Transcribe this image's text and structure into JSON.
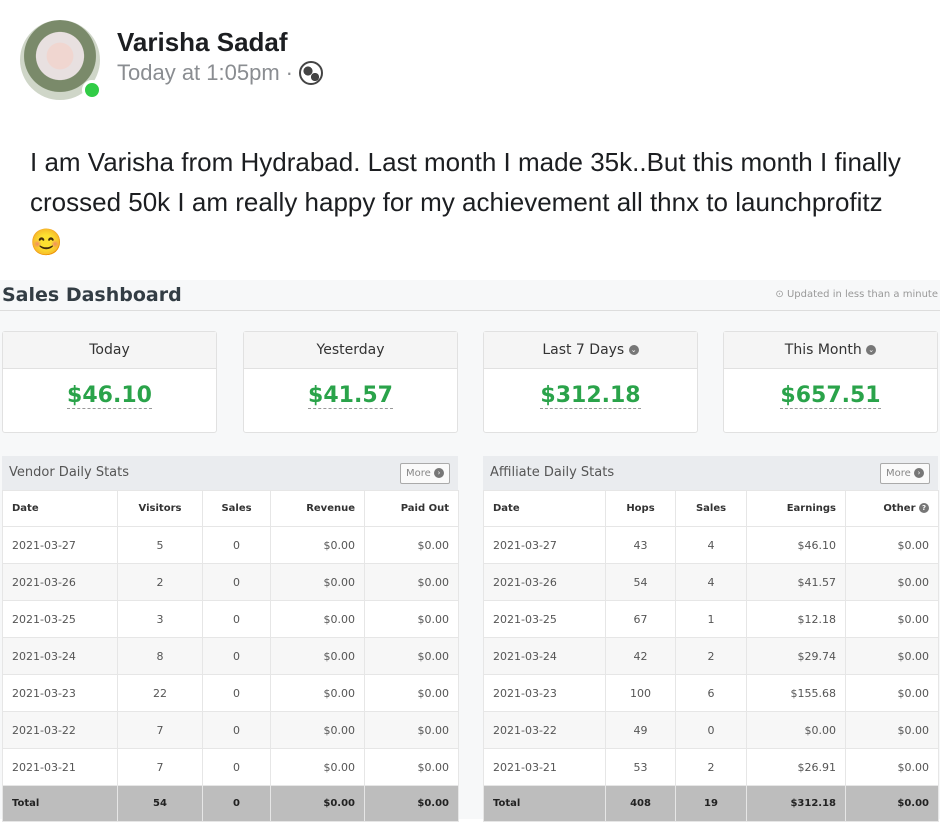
{
  "post": {
    "author": "Varisha Sadaf",
    "time": "Today at 1:05pm",
    "separator": "·",
    "privacy_icon": "globe-icon",
    "text": "I am Varisha from Hydrabad. Last month I made 35k..But this month I finally crossed 50k I am really happy for my achievement all thnx to launchprofitz 😊"
  },
  "dashboard": {
    "title": "Sales Dashboard",
    "updated": "⊙ Updated in less than a minute",
    "cards": [
      {
        "label": "Today",
        "value": "$46.10"
      },
      {
        "label": "Yesterday",
        "value": "$41.57"
      },
      {
        "label": "Last 7 Days",
        "value": "$312.18"
      },
      {
        "label": "This Month",
        "value": "$657.51"
      }
    ],
    "vendor": {
      "title": "Vendor Daily Stats",
      "more": "More",
      "columns": [
        "Date",
        "Visitors",
        "Sales",
        "Revenue",
        "Paid Out"
      ],
      "rows": [
        [
          "2021-03-27",
          "5",
          "0",
          "$0.00",
          "$0.00"
        ],
        [
          "2021-03-26",
          "2",
          "0",
          "$0.00",
          "$0.00"
        ],
        [
          "2021-03-25",
          "3",
          "0",
          "$0.00",
          "$0.00"
        ],
        [
          "2021-03-24",
          "8",
          "0",
          "$0.00",
          "$0.00"
        ],
        [
          "2021-03-23",
          "22",
          "0",
          "$0.00",
          "$0.00"
        ],
        [
          "2021-03-22",
          "7",
          "0",
          "$0.00",
          "$0.00"
        ],
        [
          "2021-03-21",
          "7",
          "0",
          "$0.00",
          "$0.00"
        ]
      ],
      "total": [
        "Total",
        "54",
        "0",
        "$0.00",
        "$0.00"
      ]
    },
    "affiliate": {
      "title": "Affiliate Daily Stats",
      "more": "More",
      "columns": [
        "Date",
        "Hops",
        "Sales",
        "Earnings",
        "Other"
      ],
      "rows": [
        [
          "2021-03-27",
          "43",
          "4",
          "$46.10",
          "$0.00"
        ],
        [
          "2021-03-26",
          "54",
          "4",
          "$41.57",
          "$0.00"
        ],
        [
          "2021-03-25",
          "67",
          "1",
          "$12.18",
          "$0.00"
        ],
        [
          "2021-03-24",
          "42",
          "2",
          "$29.74",
          "$0.00"
        ],
        [
          "2021-03-23",
          "100",
          "6",
          "$155.68",
          "$0.00"
        ],
        [
          "2021-03-22",
          "49",
          "0",
          "$0.00",
          "$0.00"
        ],
        [
          "2021-03-21",
          "53",
          "2",
          "$26.91",
          "$0.00"
        ]
      ],
      "total": [
        "Total",
        "408",
        "19",
        "$312.18",
        "$0.00"
      ]
    }
  },
  "colors": {
    "value_green": "#2aa34a",
    "online": "#31cc46"
  }
}
